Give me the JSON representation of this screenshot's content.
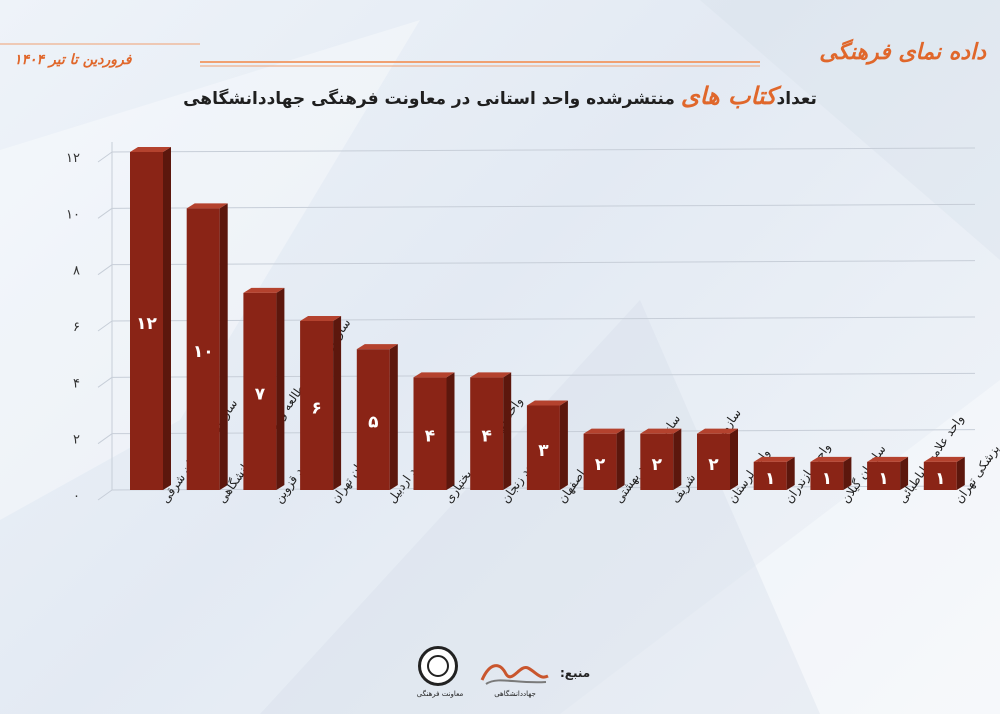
{
  "header": {
    "brand_title": "داده نمای فرهنگی",
    "date_range": "فروردین تا تیر ۱۴۰۴",
    "headline_prefix": "تعداد",
    "headline_highlight": "کتاب های",
    "headline_suffix": " منتشرشده واحد استانی در معاونت فرهنگی جهاددانشگاهی"
  },
  "footer": {
    "source_label": "منبع:",
    "seal_caption": "معاونت فرهنگی",
    "atlas_caption": "جهاددانشگاهی"
  },
  "colors": {
    "bar_front": "#8a2416",
    "bar_side": "#5c170d",
    "bar_top": "#b4422e",
    "accent": "#e0672b",
    "grid": "#c7ced8"
  },
  "chart_data": {
    "type": "bar",
    "title": "",
    "xlabel": "",
    "ylabel": "",
    "ylim": [
      0,
      12
    ],
    "yticks": [
      "۰",
      "۲",
      "۴",
      "۶",
      "۸",
      "۱۰",
      "۱۲"
    ],
    "ytick_values": [
      0,
      2,
      4,
      6,
      8,
      10,
      12
    ],
    "grid": true,
    "categories": [
      "سازمان آذربایجان شرقی",
      "سازمان ترویج مطالعه و نشر جهاد دانشگاهی",
      "واحد قزوین",
      "سازمان تهران",
      "واحد اردبیل",
      "واحد چهارمحال و بختیاری",
      "واحد زنجان",
      "واحد اصفهان",
      "سازمان شهید بهشتی",
      "سازمان صنعتی شریف",
      "واحد لرستان",
      "واحد مازندران",
      "سازمان گیلان",
      "واحد علامه طباطبائی",
      "سازمان علوم پزشکی تهران"
    ],
    "values": [
      12,
      10,
      7,
      6,
      5,
      4,
      4,
      3,
      2,
      2,
      2,
      1,
      1,
      1,
      1
    ],
    "value_labels": [
      "۱۲",
      "۱۰",
      "۷",
      "۶",
      "۵",
      "۴",
      "۴",
      "۳",
      "۲",
      "۲",
      "۲",
      "۱",
      "۱",
      "۱",
      "۱"
    ]
  }
}
